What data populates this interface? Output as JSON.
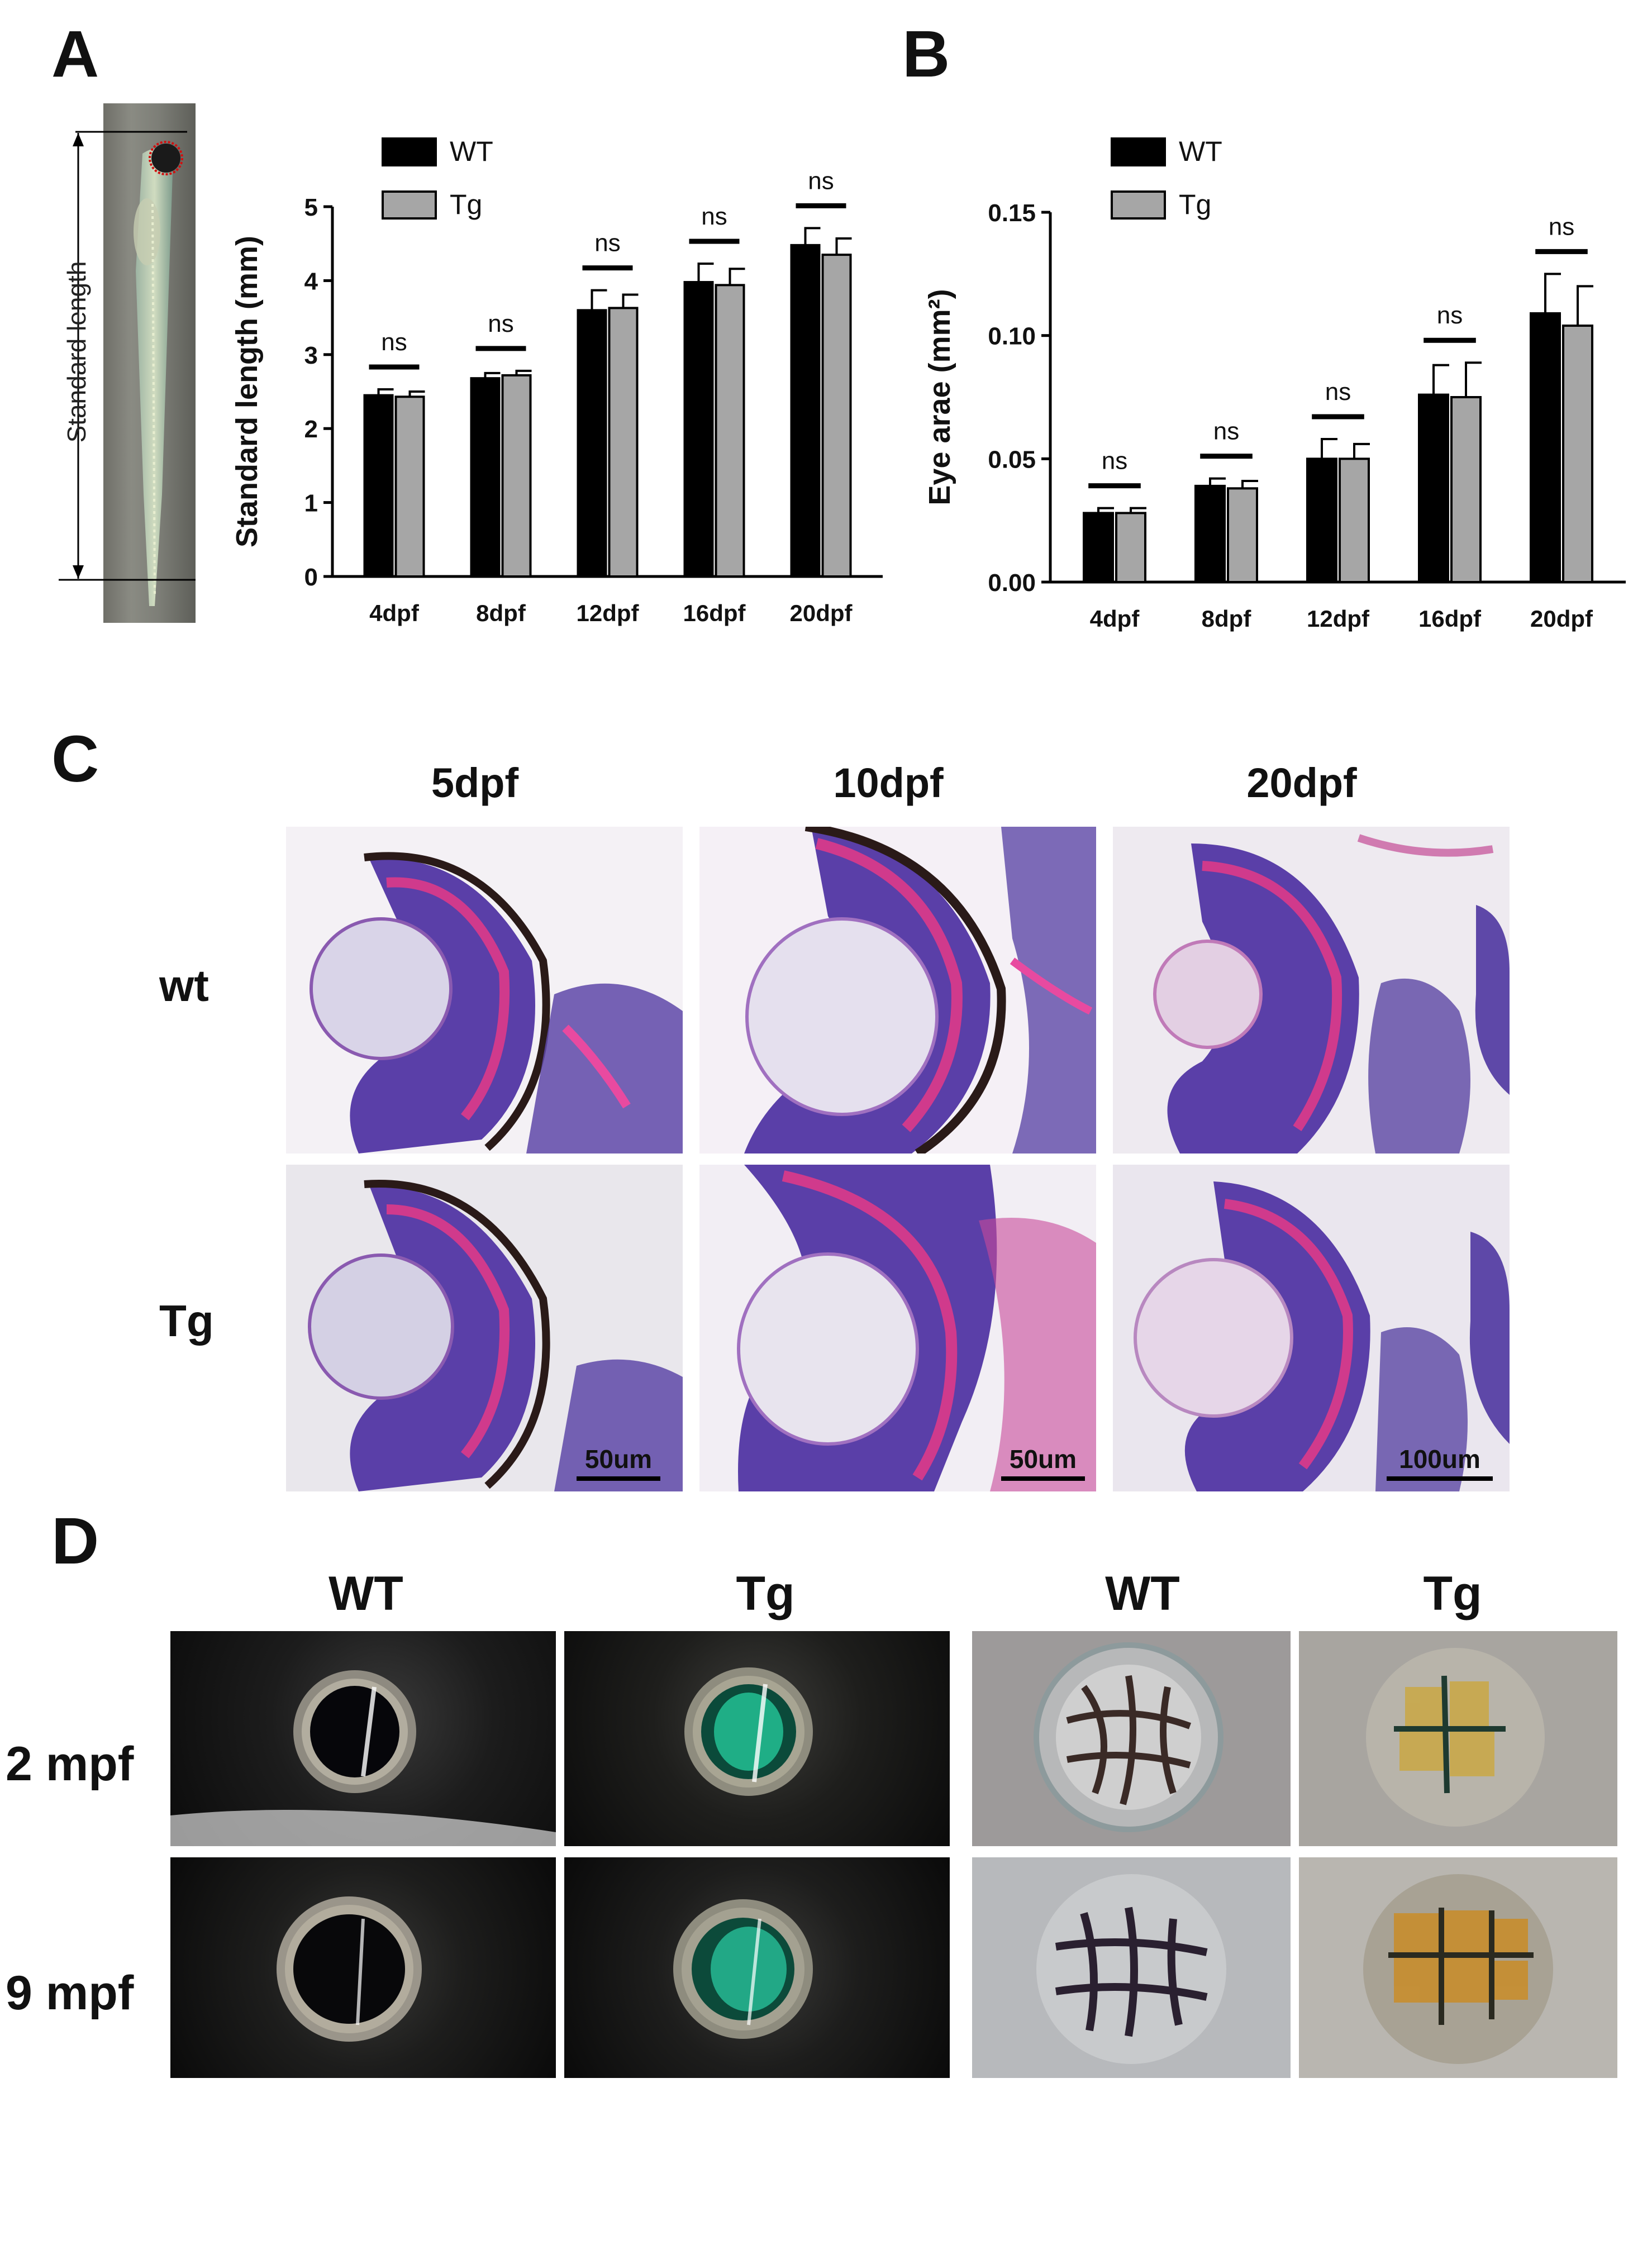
{
  "panels": {
    "A": "A",
    "B": "B",
    "C": "C",
    "D": "D"
  },
  "fish_image": {
    "label": "Standard length",
    "icon": "zebrafish-larva-photo"
  },
  "chart_data": [
    {
      "type": "bar",
      "panel": "A",
      "categories": [
        "4dpf",
        "8dpf",
        "12dpf",
        "16dpf",
        "20dpf"
      ],
      "series": [
        {
          "name": "WT",
          "color": "#000000",
          "values": [
            2.45,
            2.68,
            3.6,
            3.98,
            4.48
          ],
          "errors": [
            0.08,
            0.07,
            0.27,
            0.25,
            0.23
          ]
        },
        {
          "name": "Tg",
          "color": "#a6a6a6",
          "values": [
            2.43,
            2.72,
            3.63,
            3.94,
            4.35
          ],
          "errors": [
            0.07,
            0.06,
            0.18,
            0.22,
            0.22
          ]
        }
      ],
      "significance": [
        "ns",
        "ns",
        "ns",
        "ns",
        "ns"
      ],
      "ylabel": "Standard length (mm)",
      "ylim": [
        0,
        5
      ],
      "yticks": [
        "0",
        "1",
        "2",
        "3",
        "4",
        "5"
      ],
      "legend": "top-left"
    },
    {
      "type": "bar",
      "panel": "B",
      "categories": [
        "4dpf",
        "8dpf",
        "12dpf",
        "16dpf",
        "20dpf"
      ],
      "series": [
        {
          "name": "WT",
          "color": "#000000",
          "values": [
            0.028,
            0.039,
            0.05,
            0.076,
            0.109
          ],
          "errors": [
            0.002,
            0.003,
            0.008,
            0.012,
            0.016
          ]
        },
        {
          "name": "Tg",
          "color": "#a6a6a6",
          "values": [
            0.028,
            0.038,
            0.05,
            0.075,
            0.104
          ],
          "errors": [
            0.002,
            0.003,
            0.006,
            0.014,
            0.016
          ]
        }
      ],
      "significance": [
        "ns",
        "ns",
        "ns",
        "ns",
        "ns"
      ],
      "ylabel": "Eye arae (mm²)",
      "ylim": [
        0,
        0.15
      ],
      "yticks": [
        "0.00",
        "0.05",
        "0.10",
        "0.15"
      ],
      "legend": "top-left"
    }
  ],
  "panel_c": {
    "columns": [
      "5dpf",
      "10dpf",
      "20dpf"
    ],
    "rows": [
      "wt",
      "Tg"
    ],
    "scale_bars": [
      "50um",
      "50um",
      "100um"
    ]
  },
  "panel_d": {
    "columns": [
      "WT",
      "Tg",
      "WT",
      "Tg"
    ],
    "rows": [
      "2 mpf",
      "9 mpf"
    ]
  }
}
